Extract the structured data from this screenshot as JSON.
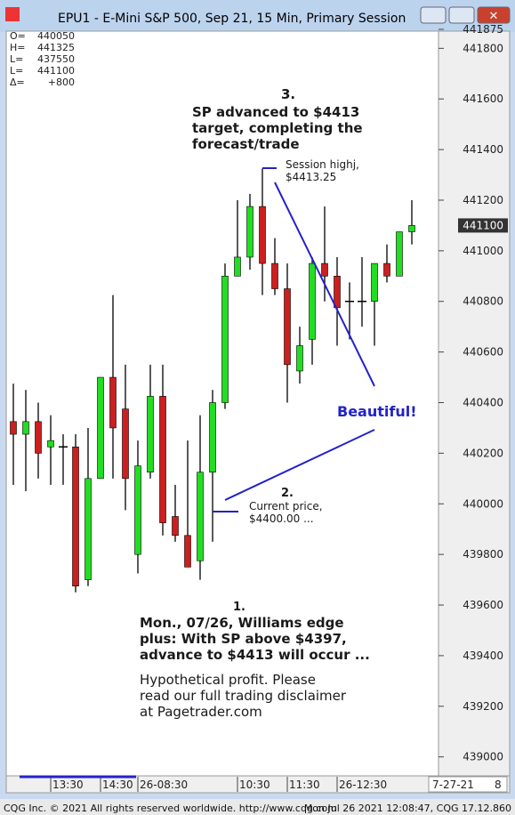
{
  "chart_data": {
    "type": "candlestick",
    "title": "EPU1 - E-Mini S&P 500, Sep 21, 15 Min, Primary Session",
    "ohlc_box": [
      [
        "O=",
        "440050"
      ],
      [
        "H=",
        "441325"
      ],
      [
        "L=",
        "437550"
      ],
      [
        "L=",
        "441100"
      ],
      [
        "Δ=",
        "+800"
      ]
    ],
    "categories": [
      null,
      null,
      null,
      "13:30",
      null,
      null,
      null,
      "14:30",
      null,
      null,
      "26-08:30",
      null,
      null,
      null,
      null,
      null,
      null,
      null,
      "10:30",
      null,
      null,
      null,
      "11:30",
      null,
      null,
      null,
      "26-12:30",
      null,
      null,
      null,
      null,
      null,
      null
    ],
    "open": [
      440325,
      440275,
      440325,
      440225,
      440225,
      440225,
      439700,
      440100,
      440500,
      440375,
      439800,
      440125,
      440425,
      439950,
      439875,
      439775,
      440125,
      440400,
      440900,
      440975,
      441175,
      440950,
      440850,
      440525,
      440650,
      440950,
      440900,
      440800,
      440800,
      440800,
      440950,
      440900,
      441075
    ],
    "high": [
      440475,
      440450,
      440400,
      440350,
      440275,
      440275,
      440300,
      440500,
      440825,
      440550,
      440250,
      440550,
      440550,
      440075,
      440250,
      440350,
      440450,
      440950,
      441200,
      441225,
      441325,
      441050,
      440950,
      440700,
      440975,
      441175,
      440975,
      440875,
      440975,
      440950,
      441025,
      441075,
      441200
    ],
    "low": [
      440075,
      440050,
      440100,
      440075,
      440075,
      439650,
      439675,
      440100,
      440100,
      439975,
      439725,
      440100,
      439875,
      439850,
      439750,
      439700,
      439850,
      440375,
      440900,
      440925,
      440825,
      440825,
      440400,
      440475,
      440550,
      440800,
      440625,
      440650,
      440700,
      440625,
      440875,
      440900,
      441025
    ],
    "close": [
      440275,
      440325,
      440200,
      440250,
      440225,
      439675,
      440100,
      440500,
      440300,
      440100,
      440150,
      440425,
      439925,
      439875,
      439750,
      440125,
      440400,
      440900,
      440975,
      441175,
      440950,
      440850,
      440550,
      440625,
      440950,
      440900,
      440775,
      440800,
      440800,
      440950,
      440900,
      441075,
      441100
    ],
    "up_color": "#22dd22",
    "down_color": "#cc1f1f",
    "ylim": [
      438925,
      441875
    ],
    "yticks": [
      439000,
      439200,
      439400,
      439600,
      439800,
      440000,
      440200,
      440400,
      440600,
      440800,
      441000,
      441200,
      441400,
      441600,
      441800,
      441875
    ],
    "last_price": 441100,
    "date_label": "7-27-21",
    "page_label": "8",
    "annotations": {
      "n3": "3.",
      "n3_lines": [
        "SP advanced to $4413",
        "target, completing the",
        "forecast/trade"
      ],
      "session_high": [
        "Session highj,",
        "$4413.25"
      ],
      "beautiful": "Beautiful!",
      "n2": "2.",
      "current": [
        "Current price,",
        "$4400.00 ..."
      ],
      "n1": "1.",
      "n1_lines": [
        "Mon., 07/26, Williams edge",
        "plus: With SP above $4397,",
        "advance to $4413 will occur ..."
      ],
      "disclaimer": [
        "Hypothetical profit. Please",
        "read our full trading disclaimer",
        "at Pagetrader.com"
      ]
    },
    "footer_left": "CQG Inc. © 2021 All rights reserved worldwide. http://www.cqg.com",
    "footer_right": "Mon Jul 26 2021 12:08:47, CQG 17.12.860"
  }
}
